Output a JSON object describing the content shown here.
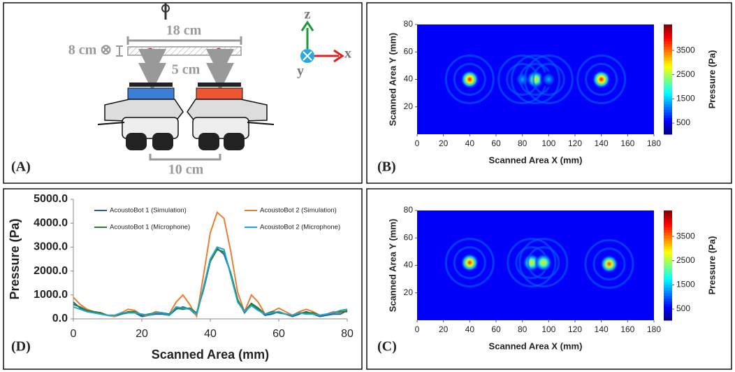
{
  "diagram": {
    "panel_label": "(A)",
    "width_label": "18 cm",
    "thickness_label": "8 cm ⊗",
    "gap_label": "5 cm",
    "spacing_label": "10 cm",
    "axis_z": "z",
    "axis_x": "x",
    "axis_y": "y"
  },
  "chart_data": [
    {
      "type": "heatmap",
      "panel_label": "(B)",
      "x_label": "Scanned Area X (mm)",
      "y_label": "Scanned Area Y (mm)",
      "colorbar_label": "Pressure (Pa)",
      "xlim": [
        0,
        180
      ],
      "xticks": [
        0,
        20,
        40,
        60,
        80,
        100,
        120,
        140,
        160,
        180
      ],
      "ylim": [
        0,
        80
      ],
      "yticks": [
        20,
        40,
        60,
        80
      ],
      "clim": [
        40,
        4570
      ],
      "cticks": [
        500,
        1500,
        2500,
        3500
      ],
      "x": [
        40,
        80,
        90,
        100,
        140
      ],
      "y": [
        40,
        40,
        40,
        40,
        40
      ],
      "values": [
        4000,
        1400,
        3000,
        1400,
        4000
      ]
    },
    {
      "type": "line",
      "panel_label": "(D)",
      "x_label": "Scanned Area (mm)",
      "y_label": "Pressure (Pa)",
      "xlim": [
        0,
        80
      ],
      "xticks": [
        0,
        20,
        40,
        60,
        80
      ],
      "ylim": [
        0,
        5000
      ],
      "yticks": [
        {
          "value": 0,
          "label": "0.0"
        },
        {
          "value": 1000,
          "label": "1000.0"
        },
        {
          "value": 2000,
          "label": "2000.0"
        },
        {
          "value": 3000,
          "label": "3000.0"
        },
        {
          "value": 4000,
          "label": "4000.0"
        },
        {
          "value": 5000,
          "label": "5000.0"
        }
      ],
      "x": [
        0,
        2,
        4,
        6,
        8,
        10,
        12,
        14,
        16,
        18,
        20,
        22,
        24,
        26,
        28,
        30,
        32,
        34,
        36,
        38,
        40,
        42,
        44,
        46,
        48,
        50,
        52,
        54,
        56,
        58,
        60,
        62,
        64,
        66,
        68,
        70,
        72,
        74,
        76,
        78,
        80
      ],
      "series": [
        {
          "name": "AcoustoBot 1 (Simulation)",
          "color": "#1f5fa8",
          "values": [
            700,
            450,
            300,
            250,
            200,
            150,
            100,
            200,
            250,
            250,
            100,
            150,
            200,
            200,
            150,
            400,
            500,
            400,
            150,
            1300,
            2500,
            2950,
            2700,
            1900,
            800,
            250,
            600,
            400,
            150,
            200,
            300,
            200,
            100,
            200,
            300,
            200,
            100,
            150,
            200,
            200,
            350
          ]
        },
        {
          "name": "AcoustoBot 2 (Simulation)",
          "color": "#ed7d31",
          "values": [
            900,
            600,
            400,
            300,
            250,
            150,
            100,
            250,
            400,
            350,
            150,
            150,
            300,
            250,
            200,
            700,
            1000,
            600,
            100,
            1800,
            3600,
            4450,
            4200,
            2800,
            1100,
            300,
            1000,
            700,
            200,
            300,
            450,
            300,
            150,
            300,
            400,
            300,
            150,
            200,
            300,
            250,
            400
          ]
        },
        {
          "name": "AcoustoBot 1 (Microphone)",
          "color": "#2e7d32",
          "values": [
            600,
            500,
            350,
            300,
            250,
            150,
            150,
            200,
            300,
            300,
            150,
            200,
            250,
            250,
            200,
            450,
            400,
            450,
            250,
            1200,
            2400,
            2900,
            2800,
            1900,
            800,
            300,
            650,
            450,
            200,
            300,
            250,
            200,
            150,
            250,
            250,
            250,
            150,
            200,
            250,
            300,
            300
          ]
        },
        {
          "name": "AcoustoBot 2 (Microphone)",
          "color": "#1fa6c9",
          "values": [
            500,
            400,
            300,
            250,
            200,
            150,
            150,
            250,
            250,
            250,
            200,
            150,
            250,
            250,
            150,
            500,
            450,
            400,
            200,
            1300,
            2500,
            3000,
            2900,
            1800,
            700,
            300,
            550,
            350,
            200,
            250,
            300,
            200,
            150,
            250,
            200,
            200,
            150,
            200,
            250,
            350,
            400
          ]
        }
      ]
    },
    {
      "type": "heatmap",
      "panel_label": "(C)",
      "x_label": "Scanned Area X (mm)",
      "y_label": "Scanned Area Y (mm)",
      "colorbar_label": "Pressure (Pa)",
      "xlim": [
        0,
        180
      ],
      "xticks": [
        0,
        20,
        40,
        60,
        80,
        100,
        120,
        140,
        160,
        180
      ],
      "ylim": [
        0,
        80
      ],
      "yticks": [
        20,
        40,
        60,
        80
      ],
      "clim": [
        40,
        4570
      ],
      "cticks": [
        500,
        1500,
        2500,
        3500
      ],
      "x": [
        40,
        87,
        96,
        146
      ],
      "y": [
        42,
        42,
        42,
        41
      ],
      "values": [
        3800,
        3000,
        3000,
        3700
      ]
    }
  ]
}
